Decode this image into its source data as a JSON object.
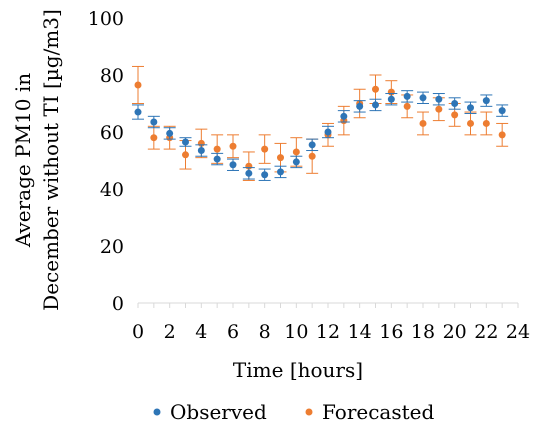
{
  "chart_data": {
    "type": "scatter",
    "title": "",
    "xlabel": "Time [hours]",
    "ylabel_lines": [
      "Average PM10 in",
      "December without TI [µg/m3]"
    ],
    "xlim": [
      0,
      24
    ],
    "ylim": [
      0,
      100
    ],
    "x_ticks": [
      "0",
      "2",
      "4",
      "6",
      "8",
      "10",
      "12",
      "14",
      "16",
      "18",
      "20",
      "22",
      "24"
    ],
    "y_ticks": [
      "0",
      "20",
      "40",
      "60",
      "80",
      "100"
    ],
    "grid": false,
    "legend_position": "bottom",
    "x": [
      0,
      1,
      2,
      3,
      4,
      5,
      6,
      7,
      8,
      9,
      10,
      11,
      12,
      13,
      14,
      15,
      16,
      17,
      18,
      19,
      20,
      21,
      22,
      23
    ],
    "series": [
      {
        "name": "Observed",
        "color": "#2e75b6",
        "values": [
          67,
          63.5,
          59.5,
          56.5,
          53.5,
          50.5,
          48.5,
          45.5,
          45,
          46,
          49.5,
          55.5,
          60,
          65.5,
          69,
          69.5,
          71.5,
          72.5,
          72,
          71.5,
          70,
          68.5,
          71,
          67.5
        ],
        "error": [
          2.5,
          2,
          2,
          1.5,
          2,
          2,
          2,
          2,
          2,
          2,
          2,
          2,
          2,
          2,
          2,
          2,
          2,
          2,
          2,
          2,
          2,
          2,
          2,
          2
        ]
      },
      {
        "name": "Forecasted",
        "color": "#ed7d31",
        "values": [
          76.5,
          58,
          58,
          52,
          56,
          54,
          55,
          48,
          54,
          51,
          53,
          51.5,
          59,
          64,
          70,
          75,
          74,
          69,
          63,
          68,
          66,
          63,
          63,
          59
        ],
        "error": [
          6.5,
          4,
          4,
          5,
          5,
          5,
          4,
          5,
          5,
          5,
          5,
          6,
          4,
          5,
          5,
          5,
          4,
          4,
          4,
          4,
          4,
          4,
          4,
          4
        ]
      }
    ]
  }
}
